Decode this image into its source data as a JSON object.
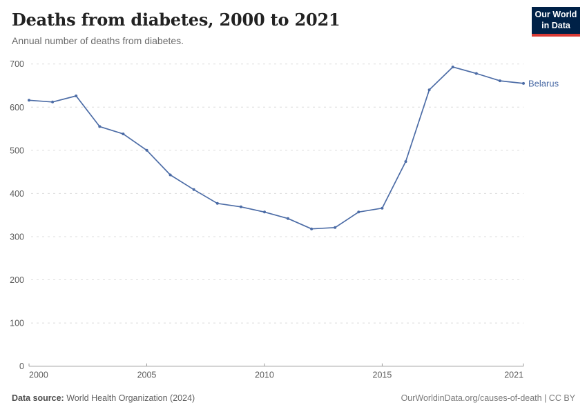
{
  "header": {
    "title": "Deaths from diabetes, 2000 to 2021",
    "subtitle": "Annual number of deaths from diabetes.",
    "logo_line1": "Our World",
    "logo_line2": "in Data"
  },
  "footer": {
    "source_label": "Data source:",
    "source_value": " World Health Organization (2024)",
    "credit": "OurWorldinData.org/causes-of-death | CC BY"
  },
  "chart_data": {
    "type": "line",
    "title": "Deaths from diabetes, 2000 to 2021",
    "subtitle": "Annual number of deaths from diabetes.",
    "xlabel": "",
    "ylabel": "",
    "x": [
      2000,
      2001,
      2002,
      2003,
      2004,
      2005,
      2006,
      2007,
      2008,
      2009,
      2010,
      2011,
      2012,
      2013,
      2014,
      2015,
      2016,
      2017,
      2018,
      2019,
      2020,
      2021
    ],
    "series": [
      {
        "name": "Belarus",
        "values": [
          616,
          612,
          626,
          555,
          538,
          500,
          443,
          409,
          377,
          369,
          357,
          342,
          318,
          321,
          357,
          366,
          474,
          640,
          693,
          678,
          661,
          655
        ]
      }
    ],
    "xlim": [
      2000,
      2021
    ],
    "ylim": [
      0,
      700
    ],
    "x_ticks": [
      2000,
      2005,
      2010,
      2015,
      2021
    ],
    "y_ticks": [
      0,
      100,
      200,
      300,
      400,
      500,
      600,
      700
    ],
    "grid": true,
    "grid_style": "dashed-horizontal",
    "legend_position": "end-of-line",
    "colors": {
      "line": "#4C6CA6",
      "grid": "#dcdcdc",
      "axis": "#999999",
      "tick_text": "#5b5b5b",
      "title": "#222222",
      "subtitle": "#6b6b6b",
      "logo_bg": "#002147",
      "logo_red": "#D93A34"
    }
  }
}
